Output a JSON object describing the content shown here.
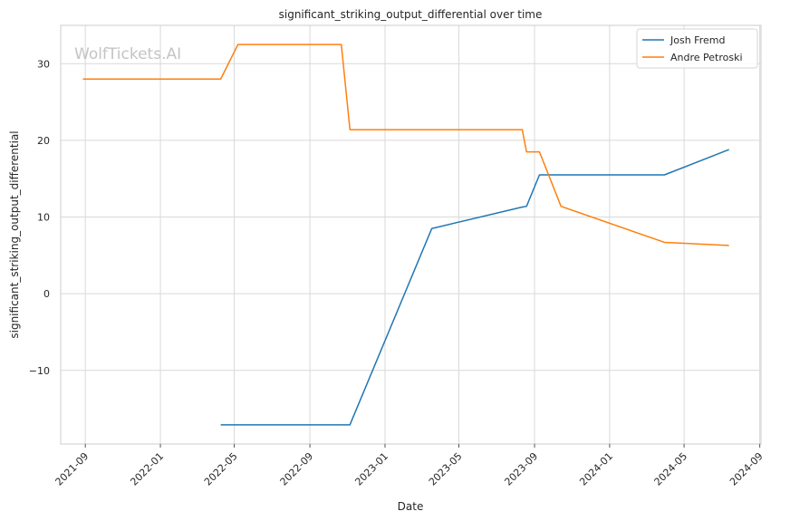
{
  "chart_data": {
    "type": "line",
    "title": "significant_striking_output_differential over time",
    "xlabel": "Date",
    "ylabel": "significant_striking_output_differential",
    "watermark": "WolfTickets.AI",
    "x_ticks": [
      "2021-09-01",
      "2022-01-01",
      "2022-05-01",
      "2022-09-01",
      "2023-01-01",
      "2023-05-01",
      "2023-09-01",
      "2024-01-01",
      "2024-05-01",
      "2024-09-01"
    ],
    "x_tick_labels": [
      "2021-09",
      "2022-01",
      "2022-05",
      "2022-09",
      "2023-01",
      "2023-05",
      "2023-09",
      "2024-01",
      "2024-05",
      "2024-09"
    ],
    "y_ticks": [
      -10,
      0,
      10,
      20,
      30
    ],
    "y_tick_labels": [
      "−10",
      "0",
      "10",
      "20",
      "30"
    ],
    "xlim": [
      "2021-07-23",
      "2024-09-03"
    ],
    "ylim": [
      -19.6,
      35.0
    ],
    "grid": true,
    "legend_position": "top-right",
    "series": [
      {
        "name": "Josh Fremd",
        "color": "#1f77b4",
        "points": [
          {
            "x": "2022-04-09",
            "y": -17.1
          },
          {
            "x": "2022-11-05",
            "y": -17.1
          },
          {
            "x": "2023-03-18",
            "y": 8.5
          },
          {
            "x": "2023-08-12",
            "y": 11.3
          },
          {
            "x": "2023-08-19",
            "y": 11.4
          },
          {
            "x": "2023-09-09",
            "y": 15.5
          },
          {
            "x": "2024-03-30",
            "y": 15.5
          },
          {
            "x": "2024-07-13",
            "y": 18.8
          }
        ]
      },
      {
        "name": "Andre Petroski",
        "color": "#ff7f0e",
        "points": [
          {
            "x": "2021-08-28",
            "y": 28.0
          },
          {
            "x": "2022-04-09",
            "y": 28.0
          },
          {
            "x": "2022-05-07",
            "y": 32.5
          },
          {
            "x": "2022-10-22",
            "y": 32.5
          },
          {
            "x": "2022-11-05",
            "y": 21.4
          },
          {
            "x": "2023-08-12",
            "y": 21.4
          },
          {
            "x": "2023-08-19",
            "y": 18.5
          },
          {
            "x": "2023-09-09",
            "y": 18.5
          },
          {
            "x": "2023-10-14",
            "y": 11.4
          },
          {
            "x": "2024-03-30",
            "y": 6.7
          },
          {
            "x": "2024-07-13",
            "y": 6.3
          }
        ]
      }
    ]
  }
}
